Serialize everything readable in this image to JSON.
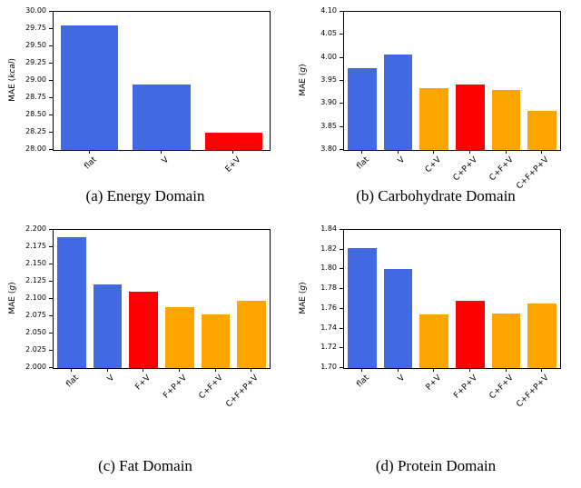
{
  "palette": {
    "blue": "#4169e1",
    "red": "#ff0000",
    "orange": "#ffa500",
    "axis": "#000000",
    "background": "#ffffff"
  },
  "chart_data": [
    {
      "type": "bar",
      "caption": "(a) Energy Domain",
      "title": "",
      "xlabel": "",
      "ylabel": "MAE (kcal)",
      "categories": [
        "flat",
        "V",
        "E+V"
      ],
      "values": [
        29.8,
        28.95,
        28.25
      ],
      "bar_colors": [
        "blue",
        "blue",
        "red"
      ],
      "ylim": [
        28.0,
        30.0
      ],
      "yticks": [
        "28.00",
        "28.25",
        "28.50",
        "28.75",
        "29.00",
        "29.25",
        "29.50",
        "29.75",
        "30.00"
      ],
      "grid": false,
      "legend": "none"
    },
    {
      "type": "bar",
      "caption": "(b) Carbohydrate Domain",
      "title": "",
      "xlabel": "",
      "ylabel": "MAE (g)",
      "categories": [
        "flat",
        "V",
        "C+V",
        "C+P+V",
        "C+F+V",
        "C+F+P+V"
      ],
      "values": [
        3.977,
        4.008,
        3.935,
        3.943,
        3.93,
        3.884
      ],
      "bar_colors": [
        "blue",
        "blue",
        "orange",
        "red",
        "orange",
        "orange"
      ],
      "ylim": [
        3.8,
        4.1
      ],
      "yticks": [
        "3.80",
        "3.85",
        "3.90",
        "3.95",
        "4.00",
        "4.05",
        "4.10"
      ],
      "grid": false,
      "legend": "none"
    },
    {
      "type": "bar",
      "caption": "(c) Fat Domain",
      "title": "",
      "xlabel": "",
      "ylabel": "MAE (g)",
      "categories": [
        "flat",
        "V",
        "F+V",
        "F+P+V",
        "C+F+V",
        "C+F+P+V"
      ],
      "values": [
        2.19,
        2.121,
        2.11,
        2.088,
        2.078,
        2.097
      ],
      "bar_colors": [
        "blue",
        "blue",
        "red",
        "orange",
        "orange",
        "orange"
      ],
      "ylim": [
        2.0,
        2.2
      ],
      "yticks": [
        "2.000",
        "2.025",
        "2.050",
        "2.075",
        "2.100",
        "2.125",
        "2.150",
        "2.175",
        "2.200"
      ],
      "grid": false,
      "legend": "none"
    },
    {
      "type": "bar",
      "caption": "(d) Protein Domain",
      "title": "",
      "xlabel": "",
      "ylabel": "MAE (g)",
      "categories": [
        "flat",
        "V",
        "P+V",
        "F+P+V",
        "C+F+V",
        "C+F+P+V"
      ],
      "values": [
        1.822,
        1.8,
        1.754,
        1.768,
        1.755,
        1.765
      ],
      "bar_colors": [
        "blue",
        "blue",
        "orange",
        "red",
        "orange",
        "orange"
      ],
      "ylim": [
        1.7,
        1.84
      ],
      "yticks": [
        "1.70",
        "1.72",
        "1.74",
        "1.76",
        "1.78",
        "1.80",
        "1.82",
        "1.84"
      ],
      "grid": false,
      "legend": "none"
    }
  ]
}
